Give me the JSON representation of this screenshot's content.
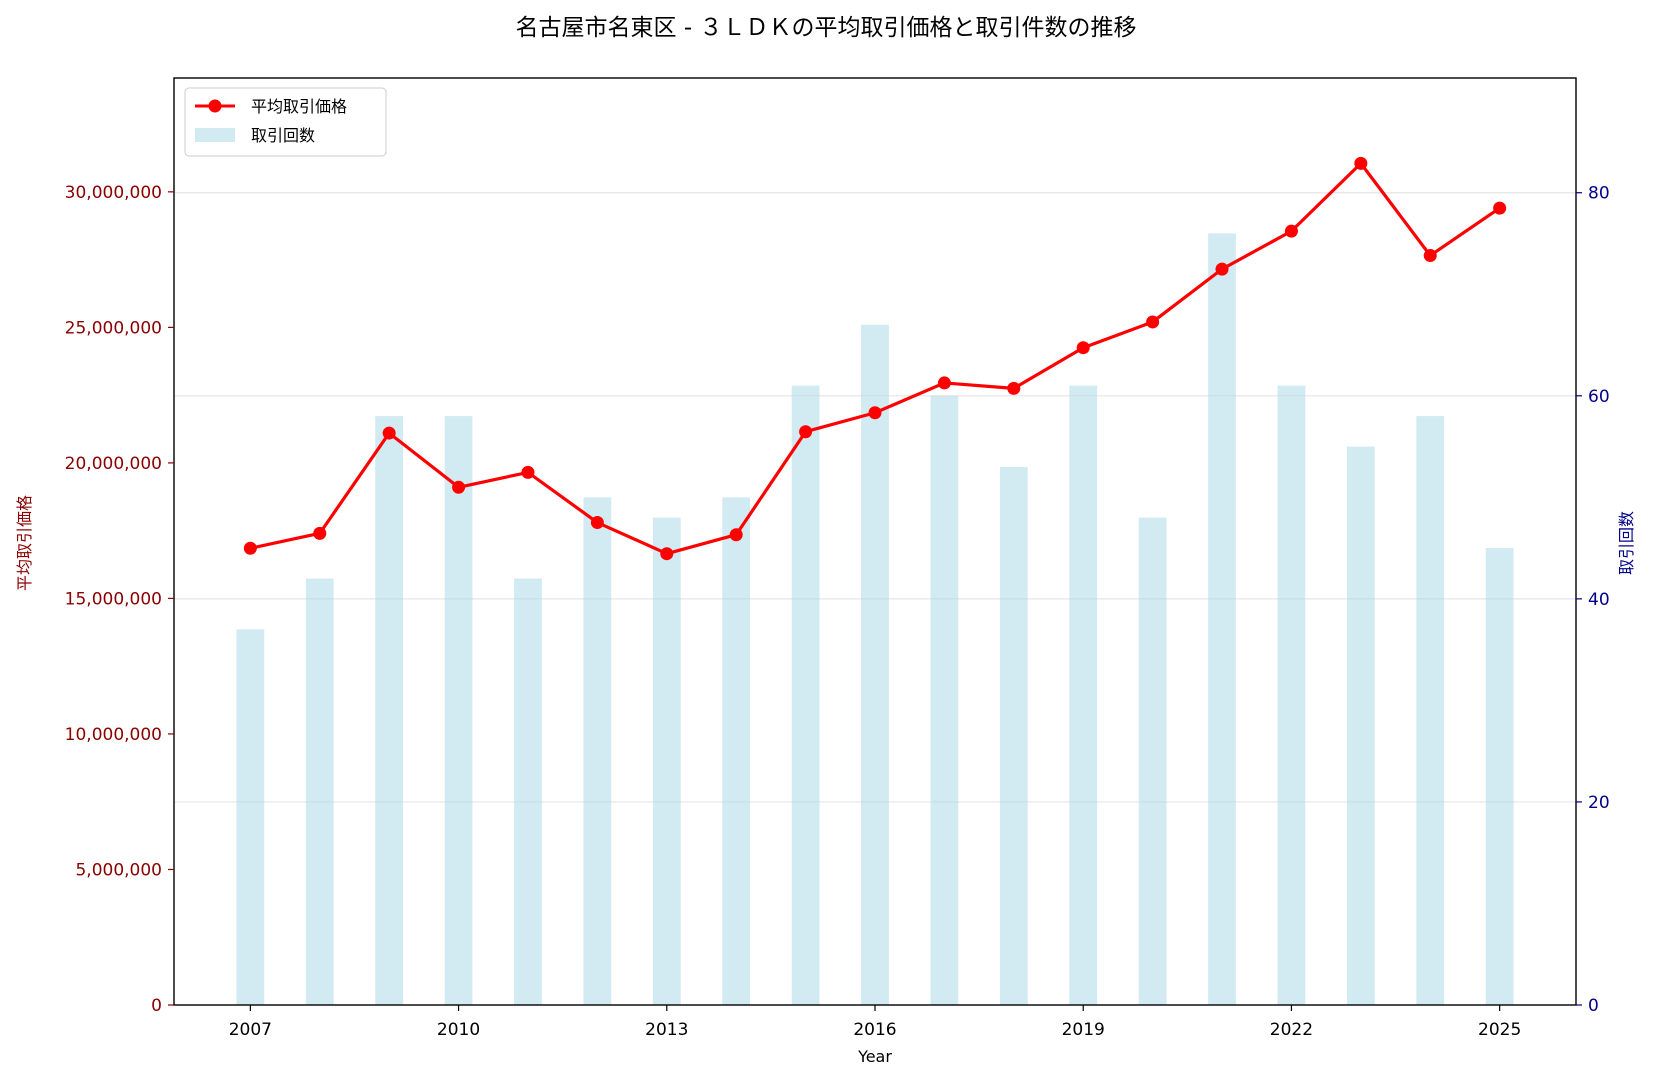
{
  "chart_data": {
    "type": "bar+line",
    "title": "名古屋市名東区 - ３ＬＤＫの平均取引価格と取引件数の推移",
    "xlabel": "Year",
    "ylabel_left": "平均取引価格",
    "ylabel_right": "取引回数",
    "x": [
      2007,
      2008,
      2009,
      2010,
      2011,
      2012,
      2013,
      2014,
      2015,
      2016,
      2017,
      2018,
      2019,
      2020,
      2021,
      2022,
      2023,
      2024,
      2025
    ],
    "x_ticks": [
      2007,
      2010,
      2013,
      2016,
      2019,
      2022,
      2025
    ],
    "xlim": [
      2005.9,
      2026.1
    ],
    "ylim_left": [
      0,
      34200000
    ],
    "ylim_right": [
      0,
      91.3
    ],
    "y_ticks_left": [
      0,
      5000000,
      10000000,
      15000000,
      20000000,
      25000000,
      30000000
    ],
    "y_tick_labels_left": [
      "0",
      "5,000,000",
      "10,000,000",
      "15,000,000",
      "20,000,000",
      "25,000,000",
      "30,000,000"
    ],
    "y_ticks_right": [
      0,
      20,
      40,
      60,
      80
    ],
    "y_tick_labels_right": [
      "0",
      "20",
      "40",
      "60",
      "80"
    ],
    "grid": true,
    "legend_position": "top-left",
    "series": [
      {
        "name": "平均取引価格",
        "kind": "line",
        "axis": "left",
        "color": "#ff0000",
        "values": [
          16850000,
          17400000,
          21100000,
          19100000,
          19650000,
          17800000,
          16650000,
          17350000,
          21150000,
          21850000,
          22950000,
          22750000,
          24250000,
          25200000,
          27150000,
          28550000,
          31050000,
          27650000,
          29400000
        ]
      },
      {
        "name": "取引回数",
        "kind": "bar",
        "axis": "right",
        "color": "#add8e6",
        "values": [
          37,
          42,
          58,
          58,
          42,
          50,
          48,
          50,
          61,
          67,
          60,
          53,
          61,
          48,
          76,
          61,
          55,
          58,
          45
        ]
      }
    ],
    "colors": {
      "left_axis": "#8b0000",
      "right_axis": "#00008b",
      "bar": "#add8e6",
      "line": "#ff0000"
    }
  }
}
